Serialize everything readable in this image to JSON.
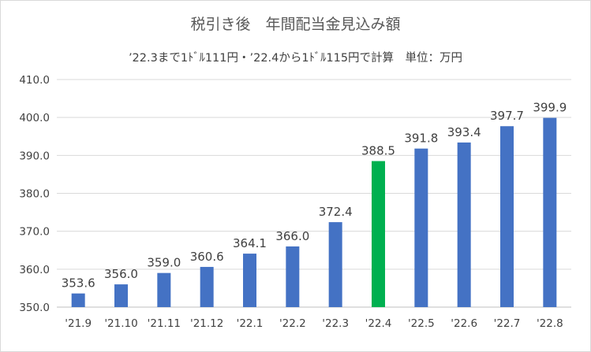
{
  "chart_data": {
    "type": "bar",
    "title": "税引き後　年間配当金見込み額",
    "subtitle": "’22.3まで1ﾄﾞﾙ111円・’22.4から1ﾄﾞﾙ115円で計算　単位：万円",
    "categories": [
      "'21.9",
      "'21.10",
      "'21.11",
      "'21.12",
      "'22.1",
      "'22.2",
      "'22.3",
      "'22.4",
      "'22.5",
      "'22.6",
      "'22.7",
      "'22.8"
    ],
    "values": [
      353.6,
      356.0,
      359.0,
      360.6,
      364.1,
      366.0,
      372.4,
      388.5,
      391.8,
      393.4,
      397.7,
      399.9
    ],
    "data_labels": [
      "353.6",
      "356.0",
      "359.0",
      "360.6",
      "364.1",
      "366.0",
      "372.4",
      "388.5",
      "391.8",
      "393.4",
      "397.7",
      "399.9"
    ],
    "ylim": [
      350,
      410
    ],
    "yticks": [
      "350.0",
      "360.0",
      "370.0",
      "380.0",
      "390.0",
      "400.0",
      "410.0"
    ],
    "grid": true,
    "bar_color": "#4472c4",
    "highlight_color": "#00b050",
    "highlight_index": 7,
    "xlabel": "",
    "ylabel": ""
  }
}
